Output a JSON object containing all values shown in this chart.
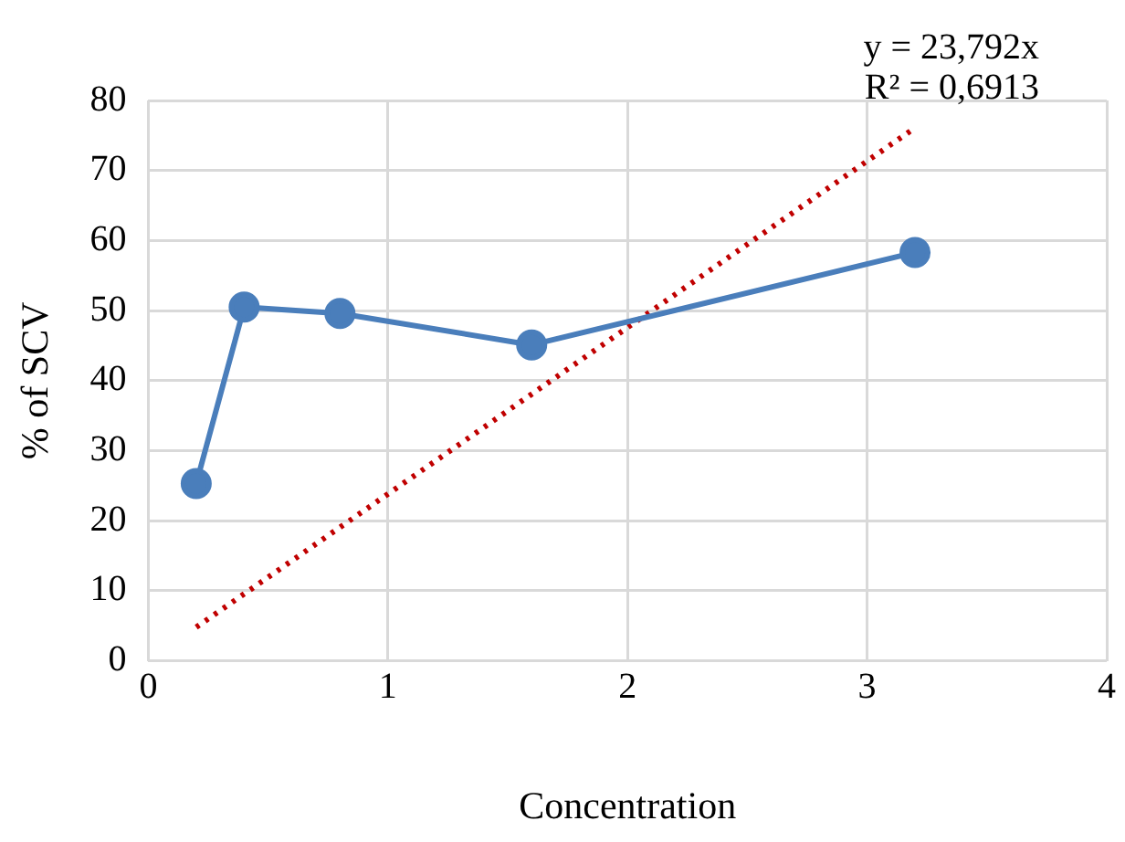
{
  "chart_data": {
    "type": "line",
    "xlabel": "Concentration",
    "ylabel": "% of SCV",
    "x": [
      0.2,
      0.4,
      0.8,
      1.6,
      3.2
    ],
    "series": [
      {
        "color": "#4a7ebb",
        "values": [
          25.3,
          50.5,
          49.6,
          45.1,
          58.3
        ],
        "marker": "circle",
        "line_style": "solid"
      },
      {
        "type": "line",
        "color": "#c00000",
        "x": [
          0.2,
          3.2
        ],
        "values": [
          4.8,
          76.1
        ],
        "marker": "none",
        "line_style": "dotted"
      }
    ],
    "xlim": [
      0,
      4
    ],
    "xticks": [
      0,
      1,
      2,
      3,
      4
    ],
    "ylim": [
      0,
      80
    ],
    "yticks": [
      0,
      10,
      20,
      30,
      40,
      50,
      60,
      70,
      80
    ],
    "grid": true,
    "legend": false,
    "annotations": [
      "y = 23,792x",
      "R² = 0,6913"
    ]
  }
}
